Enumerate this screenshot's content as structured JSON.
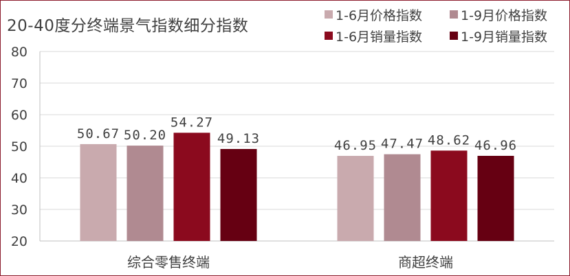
{
  "chart_data": {
    "type": "bar",
    "title": "20-40度分终端景气指数细分指数",
    "xlabel": "",
    "ylabel": "",
    "ylim": [
      20,
      80
    ],
    "yticks": [
      20,
      30,
      40,
      50,
      60,
      70,
      80
    ],
    "grid": true,
    "legend": "top-right",
    "categories": [
      "综合零售终端",
      "商超终端"
    ],
    "series": [
      {
        "name": "1-6月价格指数",
        "color": "#c9aaae",
        "values": [
          50.67,
          46.95
        ],
        "labels": [
          "50.67",
          "46.95"
        ]
      },
      {
        "name": "1-9月价格指数",
        "color": "#b08a91",
        "values": [
          50.2,
          47.47
        ],
        "labels": [
          "50.20",
          "47.47"
        ]
      },
      {
        "name": "1-6月销量指数",
        "color": "#8b0a1e",
        "values": [
          54.27,
          48.62
        ],
        "labels": [
          "54.27",
          "48.62"
        ]
      },
      {
        "name": "1-9月销量指数",
        "color": "#660012",
        "values": [
          49.13,
          46.96
        ],
        "labels": [
          "49.13",
          "46.96"
        ]
      }
    ]
  }
}
